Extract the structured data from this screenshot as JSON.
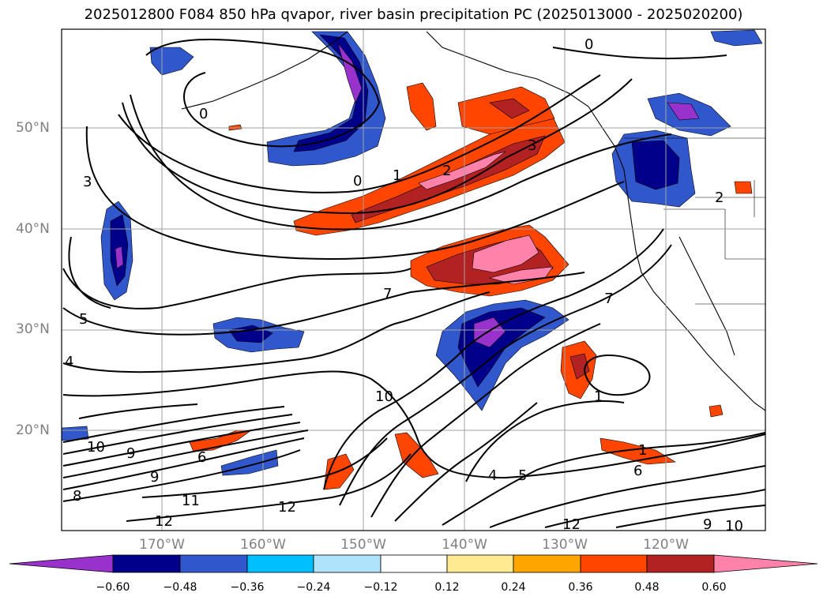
{
  "title": "2025012800 F084 850 hPa qvapor, river basin precipitation PC (2025013000 - 2025020200)",
  "lat_labels": [
    "50°N",
    "40°N",
    "30°N",
    "20°N"
  ],
  "lon_labels": [
    "170°W",
    "160°W",
    "150°W",
    "140°W",
    "130°W",
    "120°W"
  ],
  "contour_labels": [
    "0",
    "0",
    "0",
    "1",
    "2",
    "3",
    "3",
    "4",
    "5",
    "7",
    "10",
    "10",
    "9",
    "6",
    "9",
    "8",
    "11",
    "12",
    "12",
    "12",
    "4",
    "5",
    "1",
    "1",
    "6",
    "9",
    "10",
    "2",
    "7"
  ],
  "colorbar": {
    "tick_labels": [
      "−0.60",
      "−0.48",
      "−0.36",
      "−0.24",
      "−0.12",
      "0.12",
      "0.24",
      "0.36",
      "0.48",
      "0.60"
    ],
    "colors": [
      "#9932cc",
      "#00008b",
      "#3157cc",
      "#00bfff",
      "#aee3fb",
      "#ffffff",
      "#ffe991",
      "#ffa500",
      "#ff4500",
      "#b22222",
      "#ff82ab"
    ]
  }
}
